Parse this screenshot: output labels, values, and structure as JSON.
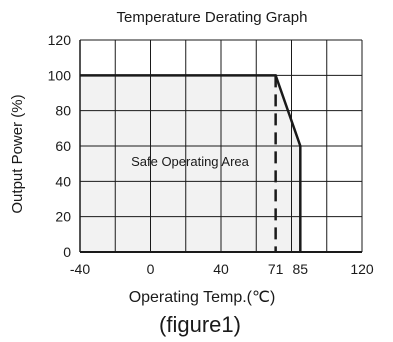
{
  "chart_data": {
    "type": "area",
    "title": "Temperature Derating Graph",
    "xlabel": "Operating Temp.(℃)",
    "ylabel": "Output Power (%)",
    "caption": "(figure1)",
    "x_ticks": [
      {
        "value": -40,
        "label": "-40"
      },
      {
        "value": 0,
        "label": "0"
      },
      {
        "value": 40,
        "label": "40"
      },
      {
        "value": 71,
        "label": "71"
      },
      {
        "value": 85,
        "label": "85"
      },
      {
        "value": 120,
        "label": "120"
      }
    ],
    "y_ticks": [
      0,
      20,
      40,
      60,
      80,
      100,
      120
    ],
    "xlim": [
      -40,
      120
    ],
    "ylim": [
      0,
      120
    ],
    "grid": true,
    "series": [
      {
        "x": [
          -40,
          71,
          85,
          85
        ],
        "y": [
          100,
          100,
          60,
          0
        ]
      }
    ],
    "region_label": "Safe Operating Area",
    "marker_line_x": 71,
    "colors": {
      "area_fill": "#f2f2f2",
      "grid": "#1a1a1a",
      "curve": "#1a1a1a"
    }
  }
}
